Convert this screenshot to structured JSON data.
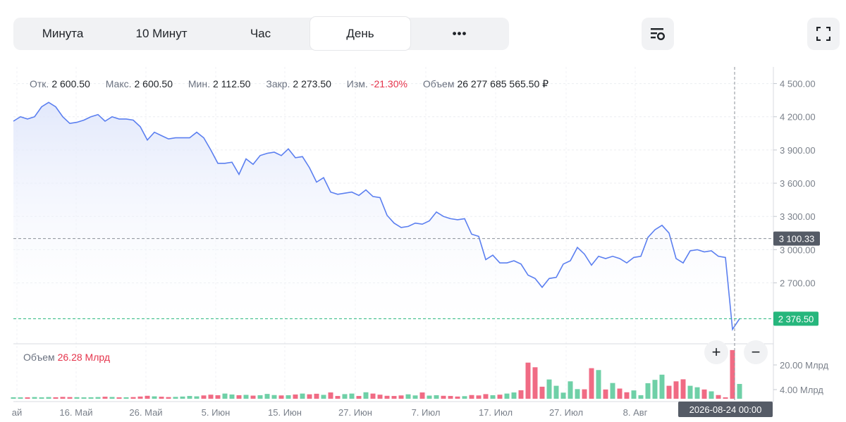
{
  "toolbar": {
    "tabs": [
      "Минута",
      "10 Минут",
      "Час",
      "День",
      "•••"
    ],
    "active_tab": "День",
    "icons": [
      "chart-settings-icon",
      "fullscreen-icon"
    ]
  },
  "info": {
    "open_label": "Отк.",
    "open": "2 600.50",
    "high_label": "Макс.",
    "high": "2 600.50",
    "low_label": "Мин.",
    "low": "2 112.50",
    "close_label": "Закр.",
    "close": "2 273.50",
    "change_label": "Изм.",
    "change": "-21.30%",
    "volume_label": "Объем",
    "volume": "26 277 685 565.50 ₽"
  },
  "volume_panel": {
    "label": "Объем",
    "value": "26.28 Млрд"
  },
  "zoom": {
    "plus": "+",
    "minus": "−"
  },
  "colors": {
    "line": "#5b7ff0",
    "up": "#6fd0a7",
    "down": "#f06b84",
    "accent_green": "#26b67c",
    "crosshair_label": "#555b66"
  },
  "chart_data": {
    "type": "line",
    "price_axis_ticks": [
      "4 500.00",
      "4 200.00",
      "3 900.00",
      "3 600.00",
      "3 300.00",
      "3 000.00",
      "2 700.00"
    ],
    "price_ylim": [
      2150,
      4650
    ],
    "volume_axis_ticks": [
      "20.00 Млрд",
      "4.00 Млрд"
    ],
    "x_tick_labels": [
      "ай",
      "16. Май",
      "26. Май",
      "5. Июн",
      "15. Июн",
      "27. Июн",
      "7. Июл",
      "17. Июл",
      "27. Июл",
      "8. Авг"
    ],
    "crosshair_price_label": "3 100.33",
    "last_price_label": "2 376.50",
    "crosshair_time_label": "2026-08-24 00:00",
    "series": [
      {
        "values": [
          4160,
          4200,
          4180,
          4200,
          4290,
          4330,
          4290,
          4200,
          4140,
          4150,
          4170,
          4200,
          4220,
          4160,
          4200,
          4180,
          4180,
          4170,
          4110,
          3990,
          4060,
          4030,
          4000,
          4010,
          4010,
          4010,
          4060,
          4010,
          3900,
          3780,
          3780,
          3790,
          3680,
          3820,
          3770,
          3850,
          3870,
          3880,
          3850,
          3910,
          3830,
          3840,
          3740,
          3610,
          3650,
          3520,
          3500,
          3510,
          3520,
          3490,
          3540,
          3480,
          3470,
          3310,
          3240,
          3200,
          3210,
          3240,
          3230,
          3260,
          3340,
          3300,
          3280,
          3270,
          3280,
          3140,
          3120,
          2910,
          2950,
          2880,
          2880,
          2900,
          2870,
          2770,
          2740,
          2660,
          2740,
          2750,
          2870,
          2900,
          3020,
          2960,
          2860,
          2940,
          2920,
          2940,
          2920,
          2880,
          2930,
          2940,
          3110,
          3180,
          3220,
          3150,
          2920,
          2880,
          2990,
          3000,
          2980,
          2990,
          2940,
          2930,
          2280,
          2376.5
        ],
        "volume_mln": [
          800,
          700,
          600,
          900,
          750,
          900,
          800,
          1000,
          900,
          850,
          700,
          800,
          900,
          1100,
          950,
          700,
          800,
          900,
          1200,
          1600,
          1300,
          1100,
          900,
          1000,
          1200,
          1500,
          1300,
          1800,
          2200,
          1900,
          2800,
          2300,
          1900,
          2100,
          1700,
          1900,
          2600,
          2000,
          1800,
          1900,
          2300,
          2800,
          2400,
          2700,
          2100,
          3400,
          1500,
          2500,
          2800,
          1500,
          3500,
          2800,
          2200,
          1600,
          1500,
          1800,
          2400,
          1800,
          3400,
          1700,
          1900,
          1600,
          1500,
          1200,
          1400,
          2000,
          1800,
          2500,
          1900,
          2200,
          2800,
          3400,
          4600,
          19500,
          17000,
          6500,
          10400,
          7000,
          3300,
          9400,
          5200,
          5100,
          16500,
          15500,
          5000,
          8500,
          5500,
          3500,
          4500,
          1900,
          8400,
          10200,
          13000,
          7000,
          9400,
          10500,
          7000,
          6200,
          5000,
          4000,
          2000,
          600,
          26280,
          8000
        ]
      }
    ]
  }
}
